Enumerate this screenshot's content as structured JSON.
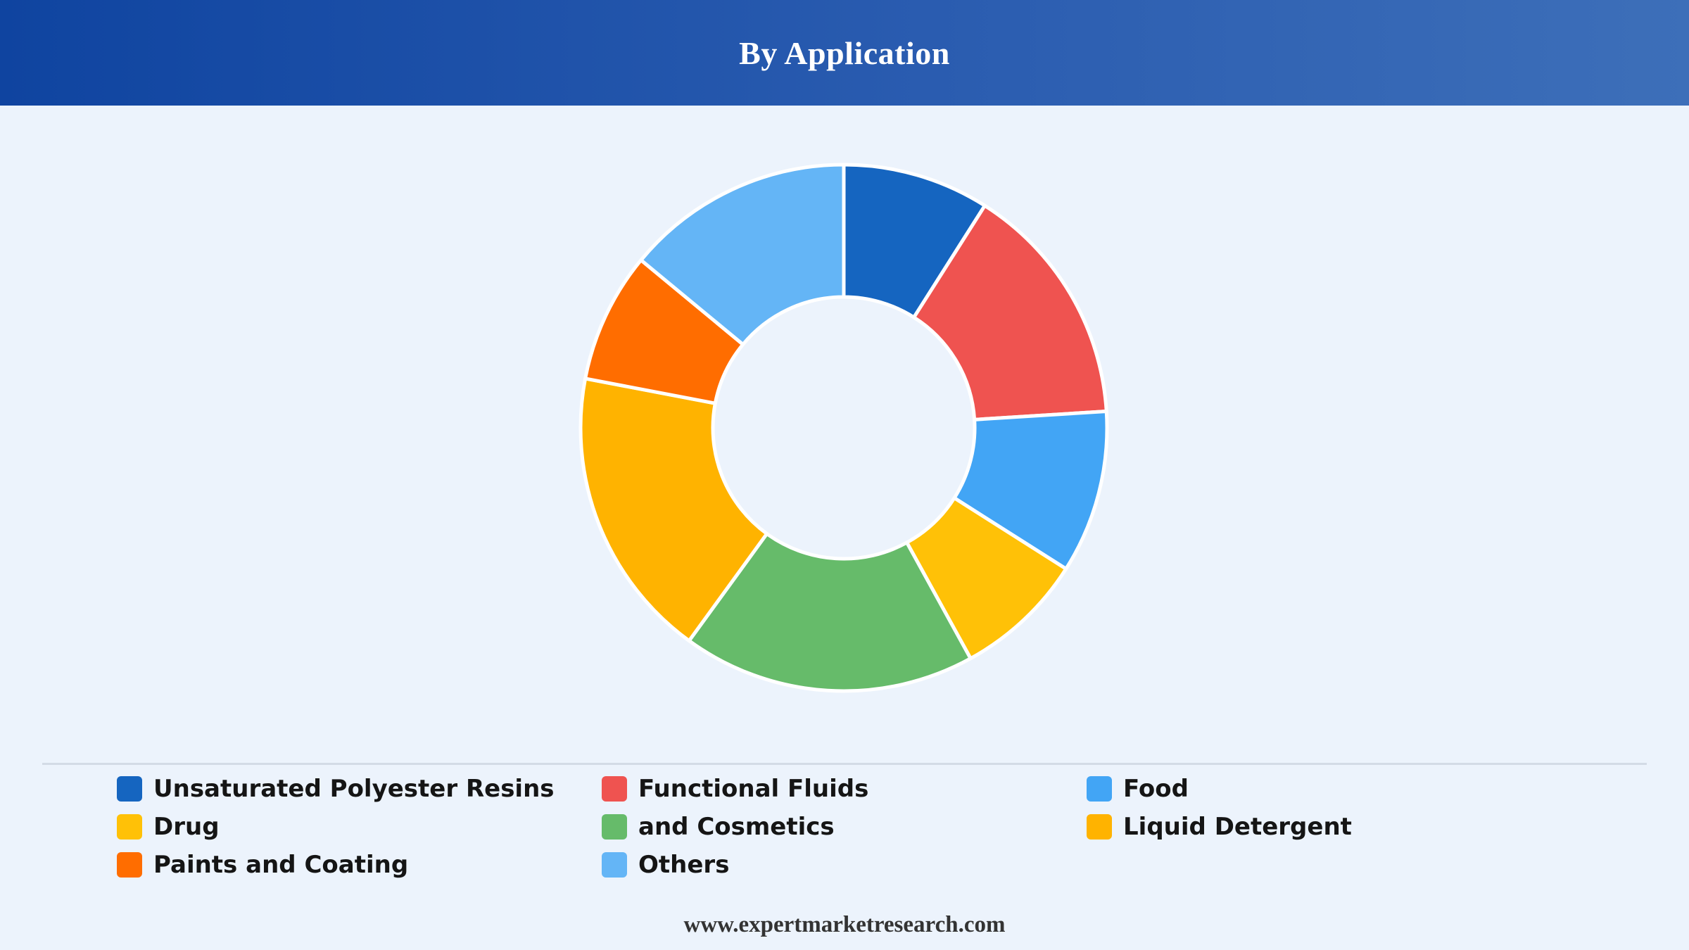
{
  "header": {
    "title": "By Application"
  },
  "chart_data": {
    "type": "pie",
    "title": "By Application",
    "donut": true,
    "legend_position": "bottom",
    "categories": [
      "Unsaturated Polyester Resins",
      "Functional Fluids",
      "Food",
      "Drug",
      "and Cosmetics",
      "Liquid Detergent",
      "Paints and Coating",
      "Others"
    ],
    "values": [
      9,
      15,
      10,
      8,
      18,
      18,
      8,
      14
    ],
    "colors": [
      "#1565c0",
      "#ef5350",
      "#42a5f5",
      "#ffc107",
      "#66bb6a",
      "#ffb300",
      "#ff6d00",
      "#64b5f6"
    ]
  },
  "legend": {
    "items": [
      {
        "label": "Unsaturated Polyester Resins",
        "color": "#1565c0"
      },
      {
        "label": "Functional Fluids",
        "color": "#ef5350"
      },
      {
        "label": "Food",
        "color": "#42a5f5"
      },
      {
        "label": "Drug",
        "color": "#ffc107"
      },
      {
        "label": "and Cosmetics",
        "color": "#66bb6a"
      },
      {
        "label": "Liquid Detergent",
        "color": "#ffb300"
      },
      {
        "label": "Paints and Coating",
        "color": "#ff6d00"
      },
      {
        "label": "Others",
        "color": "#64b5f6"
      }
    ]
  },
  "footer": {
    "source": "www.expertmarketresearch.com"
  }
}
